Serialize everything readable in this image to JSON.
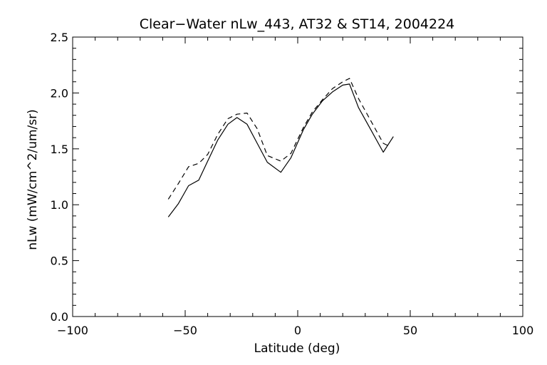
{
  "chart_data": {
    "type": "line",
    "title": "Clear−Water nLw_443, AT32 & ST14, 2004224",
    "xlabel": "Latitude (deg)",
    "ylabel": "nLw (mW/cm^2/um/sr)",
    "xlim": [
      -100,
      100
    ],
    "ylim": [
      0.0,
      2.5
    ],
    "x_ticks": [
      -100,
      -50,
      0,
      50,
      100
    ],
    "x_tick_labels": [
      "−100",
      "−50",
      "0",
      "50",
      "100"
    ],
    "y_ticks": [
      0.0,
      0.5,
      1.0,
      1.5,
      2.0,
      2.5
    ],
    "y_tick_labels": [
      "0.0",
      "0.5",
      "1.0",
      "1.5",
      "2.0",
      "2.5"
    ],
    "grid": false,
    "legend": "none",
    "series": [
      {
        "style": "solid",
        "color": "#000000",
        "x": [
          -57.5,
          -53,
          -48.5,
          -44,
          -40,
          -35.5,
          -31,
          -27,
          -22.5,
          -18,
          -13.5,
          -7.5,
          -3,
          2.5,
          6.5,
          11,
          15.5,
          20,
          23,
          27,
          32.5,
          38,
          42.5
        ],
        "y": [
          0.89,
          1.01,
          1.17,
          1.22,
          1.39,
          1.58,
          1.72,
          1.78,
          1.72,
          1.55,
          1.38,
          1.29,
          1.42,
          1.67,
          1.81,
          1.93,
          2.01,
          2.07,
          2.08,
          1.87,
          1.67,
          1.47,
          1.61
        ]
      },
      {
        "style": "dashed",
        "color": "#000000",
        "x": [
          -57.5,
          -53,
          -48.5,
          -44,
          -40,
          -35.5,
          -31,
          -27,
          -22.5,
          -18,
          -13.5,
          -7.5,
          -3,
          2.5,
          6.5,
          11,
          15.5,
          20,
          23,
          27,
          32.5,
          38,
          40
        ],
        "y": [
          1.05,
          1.19,
          1.34,
          1.37,
          1.45,
          1.63,
          1.77,
          1.81,
          1.82,
          1.68,
          1.44,
          1.39,
          1.46,
          1.69,
          1.83,
          1.94,
          2.04,
          2.1,
          2.13,
          1.95,
          1.75,
          1.55,
          1.53
        ]
      }
    ]
  }
}
